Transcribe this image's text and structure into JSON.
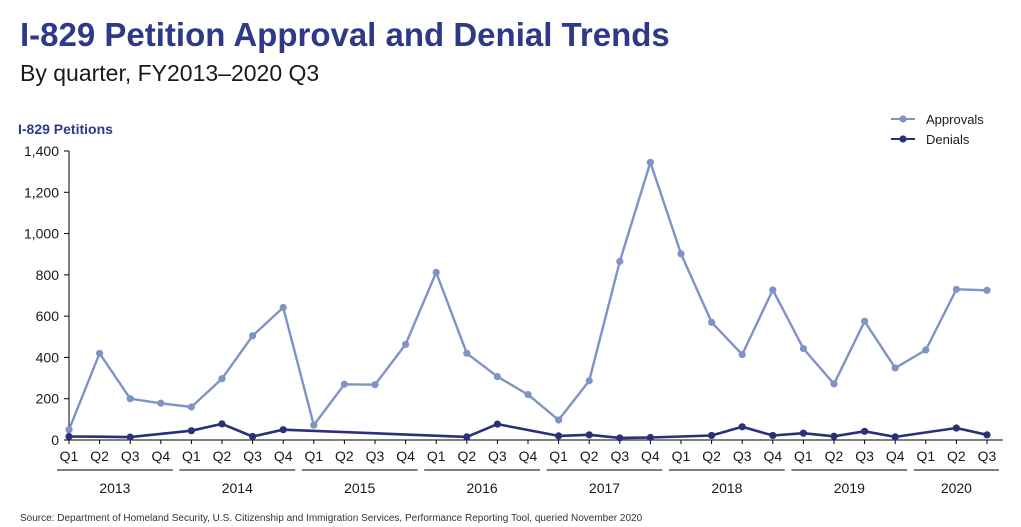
{
  "title": "I-829 Petition Approval and Denial Trends",
  "subtitle": "By quarter, FY2013–2020 Q3",
  "source": "Source: Department of Homeland Security, U.S. Citizenship and Immigration Services, Performance Reporting Tool, queried November 2020",
  "colors": {
    "title": "#2e3a87",
    "approvals": "#7f93c6",
    "denials": "#2b3178",
    "axis": "#000000"
  },
  "chart_data": {
    "type": "line",
    "title": "I-829 Petition Approval and Denial Trends",
    "ylabel": "I-829 Petitions",
    "xlabel": "",
    "ylim": [
      0,
      1400
    ],
    "yticks": [
      0,
      200,
      400,
      600,
      800,
      1000,
      1200,
      1400
    ],
    "ytick_labels": [
      "0",
      "200",
      "400",
      "600",
      "800",
      "1,000",
      "1,200",
      "1,400"
    ],
    "categories": [
      "Q1",
      "Q2",
      "Q3",
      "Q4",
      "Q1",
      "Q2",
      "Q3",
      "Q4",
      "Q1",
      "Q2",
      "Q3",
      "Q4",
      "Q1",
      "Q2",
      "Q3",
      "Q4",
      "Q1",
      "Q2",
      "Q3",
      "Q4",
      "Q1",
      "Q2",
      "Q3",
      "Q4",
      "Q1",
      "Q2",
      "Q3",
      "Q4",
      "Q1",
      "Q2",
      "Q3"
    ],
    "years": [
      "2013",
      "2014",
      "2015",
      "2016",
      "2017",
      "2018",
      "2019",
      "2020"
    ],
    "legend_position": "top-right",
    "grid": false,
    "series": [
      {
        "name": "Approvals",
        "values": [
          50,
          420,
          200,
          178,
          160,
          297,
          505,
          642,
          72,
          270,
          268,
          463,
          812,
          420,
          307,
          220,
          97,
          287,
          865,
          1345,
          902,
          570,
          414,
          727,
          443,
          272,
          575,
          349,
          436,
          730,
          725
        ],
        "points": [
          true,
          true,
          true,
          true,
          true,
          true,
          true,
          true,
          true,
          true,
          true,
          true,
          true,
          true,
          true,
          true,
          true,
          true,
          true,
          true,
          true,
          true,
          true,
          true,
          true,
          true,
          true,
          true,
          true,
          true,
          true
        ]
      },
      {
        "name": "Denials",
        "values": [
          17,
          16,
          14,
          null,
          45,
          78,
          17,
          50,
          null,
          null,
          null,
          null,
          null,
          15,
          77,
          null,
          20,
          25,
          10,
          12,
          null,
          22,
          64,
          22,
          33,
          18,
          42,
          15,
          null,
          58,
          25
        ],
        "points": [
          true,
          false,
          true,
          false,
          true,
          true,
          true,
          true,
          false,
          false,
          false,
          false,
          false,
          true,
          true,
          false,
          true,
          true,
          true,
          true,
          false,
          true,
          true,
          true,
          true,
          true,
          true,
          true,
          false,
          true,
          true
        ]
      }
    ]
  }
}
